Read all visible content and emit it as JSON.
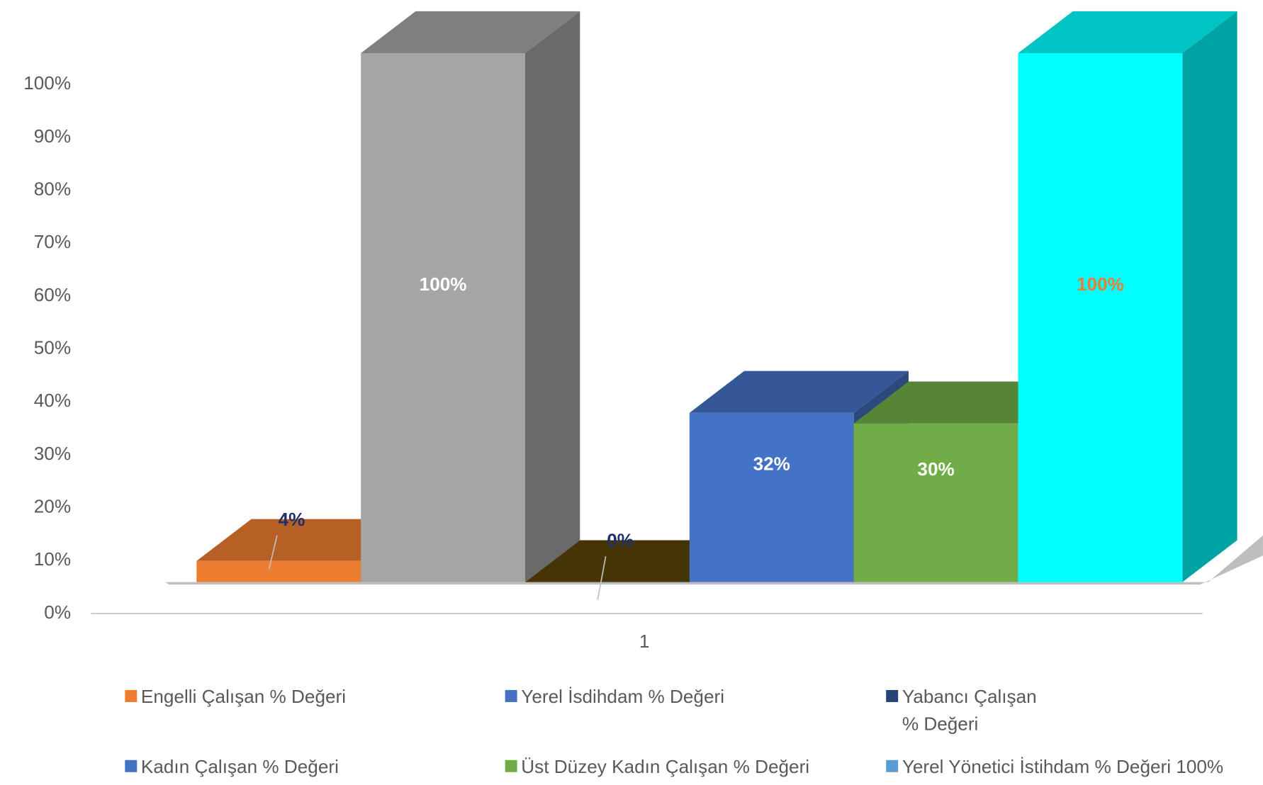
{
  "chart_data": {
    "type": "bar3d",
    "categories": [
      "1"
    ],
    "series": [
      {
        "name": "Engelli Çalışan % Değeri",
        "color": "#ED7D31",
        "legend_color": "#ED7D31",
        "label_color": "#1F2F6B",
        "values": [
          4
        ],
        "value_labels": [
          "4%"
        ]
      },
      {
        "name": "Yerel İsdihdam % Değeri",
        "color": "#A5A5A5",
        "legend_color": "#4472C4",
        "label_color": "#FFFFFF",
        "values": [
          100
        ],
        "value_labels": [
          "100%"
        ]
      },
      {
        "name": "Yabancı Çalışan % Değeri",
        "color": "#5A4508",
        "legend_color": "#264478",
        "label_color": "#1F2F6B",
        "values": [
          0
        ],
        "value_labels": [
          "0%"
        ]
      },
      {
        "name": "Kadın Çalışan % Değeri",
        "color": "#4472C4",
        "legend_color": "#4472C4",
        "label_color": "#FFFFFF",
        "values": [
          32
        ],
        "value_labels": [
          "32%"
        ]
      },
      {
        "name": "Üst Düzey Kadın Çalışan % Değeri",
        "color": "#70AD47",
        "legend_color": "#70AD47",
        "label_color": "#FFFFFF",
        "values": [
          30
        ],
        "value_labels": [
          "30%"
        ]
      },
      {
        "name": "Yerel Yönetici İstihdam % Değeri 100%",
        "color": "#00FFFF",
        "legend_color": "#5B9BD5",
        "label_color": "#ED7D31",
        "values": [
          100
        ],
        "value_labels": [
          "100%"
        ]
      }
    ],
    "ylim": [
      0,
      100
    ],
    "yticks": [
      {
        "value": 0,
        "label": "0%"
      },
      {
        "value": 10,
        "label": "10%"
      },
      {
        "value": 20,
        "label": "20%"
      },
      {
        "value": 30,
        "label": "30%"
      },
      {
        "value": 40,
        "label": "40%"
      },
      {
        "value": 50,
        "label": "50%"
      },
      {
        "value": 60,
        "label": "60%"
      },
      {
        "value": 70,
        "label": "70%"
      },
      {
        "value": 80,
        "label": "80%"
      },
      {
        "value": 90,
        "label": "90%"
      },
      {
        "value": 100,
        "label": "100%"
      }
    ],
    "legend": "bottom"
  }
}
